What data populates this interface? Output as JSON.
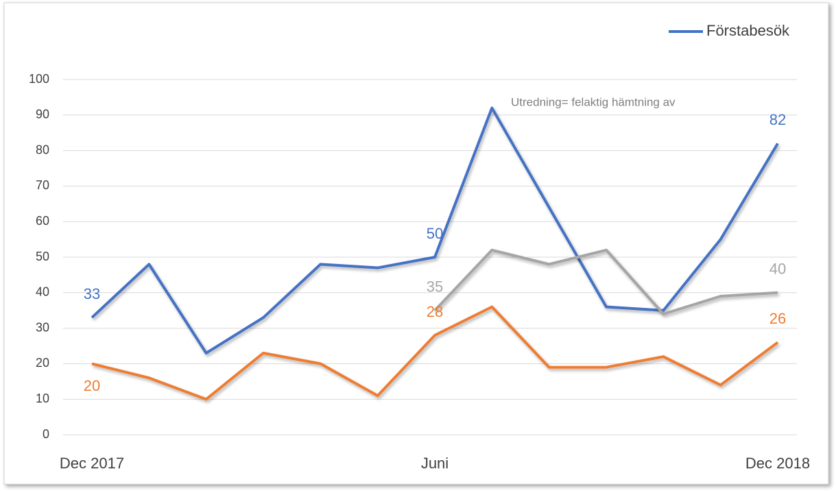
{
  "chart_data": {
    "type": "line",
    "categories": [
      "Dec 2017",
      null,
      null,
      null,
      null,
      null,
      "Juni",
      null,
      null,
      null,
      null,
      null,
      "Dec 2018"
    ],
    "series": [
      {
        "name": "Förstabesök",
        "color": "#4472c4",
        "values": [
          33,
          48,
          23,
          33,
          48,
          47,
          50,
          92,
          64,
          36,
          35,
          55,
          82
        ],
        "labels": [
          {
            "index": 0,
            "side": "above"
          },
          {
            "index": 6,
            "side": "above"
          },
          {
            "index": 12,
            "side": "above"
          }
        ]
      },
      {
        "color": "#ed7d31",
        "values": [
          20,
          16,
          10,
          23,
          20,
          11,
          28,
          36,
          19,
          19,
          22,
          14,
          26
        ],
        "labels": [
          {
            "index": 0,
            "side": "below"
          },
          {
            "index": 6,
            "side": "above"
          },
          {
            "index": 12,
            "side": "above"
          }
        ]
      },
      {
        "color": "#a5a5a5",
        "values": [
          null,
          null,
          null,
          null,
          null,
          null,
          35,
          52,
          48,
          52,
          34,
          39,
          40
        ],
        "labels": [
          {
            "index": 6,
            "side": "above"
          },
          {
            "index": 12,
            "side": "above"
          }
        ]
      }
    ],
    "annotations": [
      "Utredning= felaktig hämtning av"
    ],
    "ylim": [
      0,
      100
    ],
    "yticks": [
      0,
      10,
      20,
      30,
      40,
      50,
      60,
      70,
      80,
      90,
      100
    ],
    "grid": true,
    "legend": "top-right"
  }
}
